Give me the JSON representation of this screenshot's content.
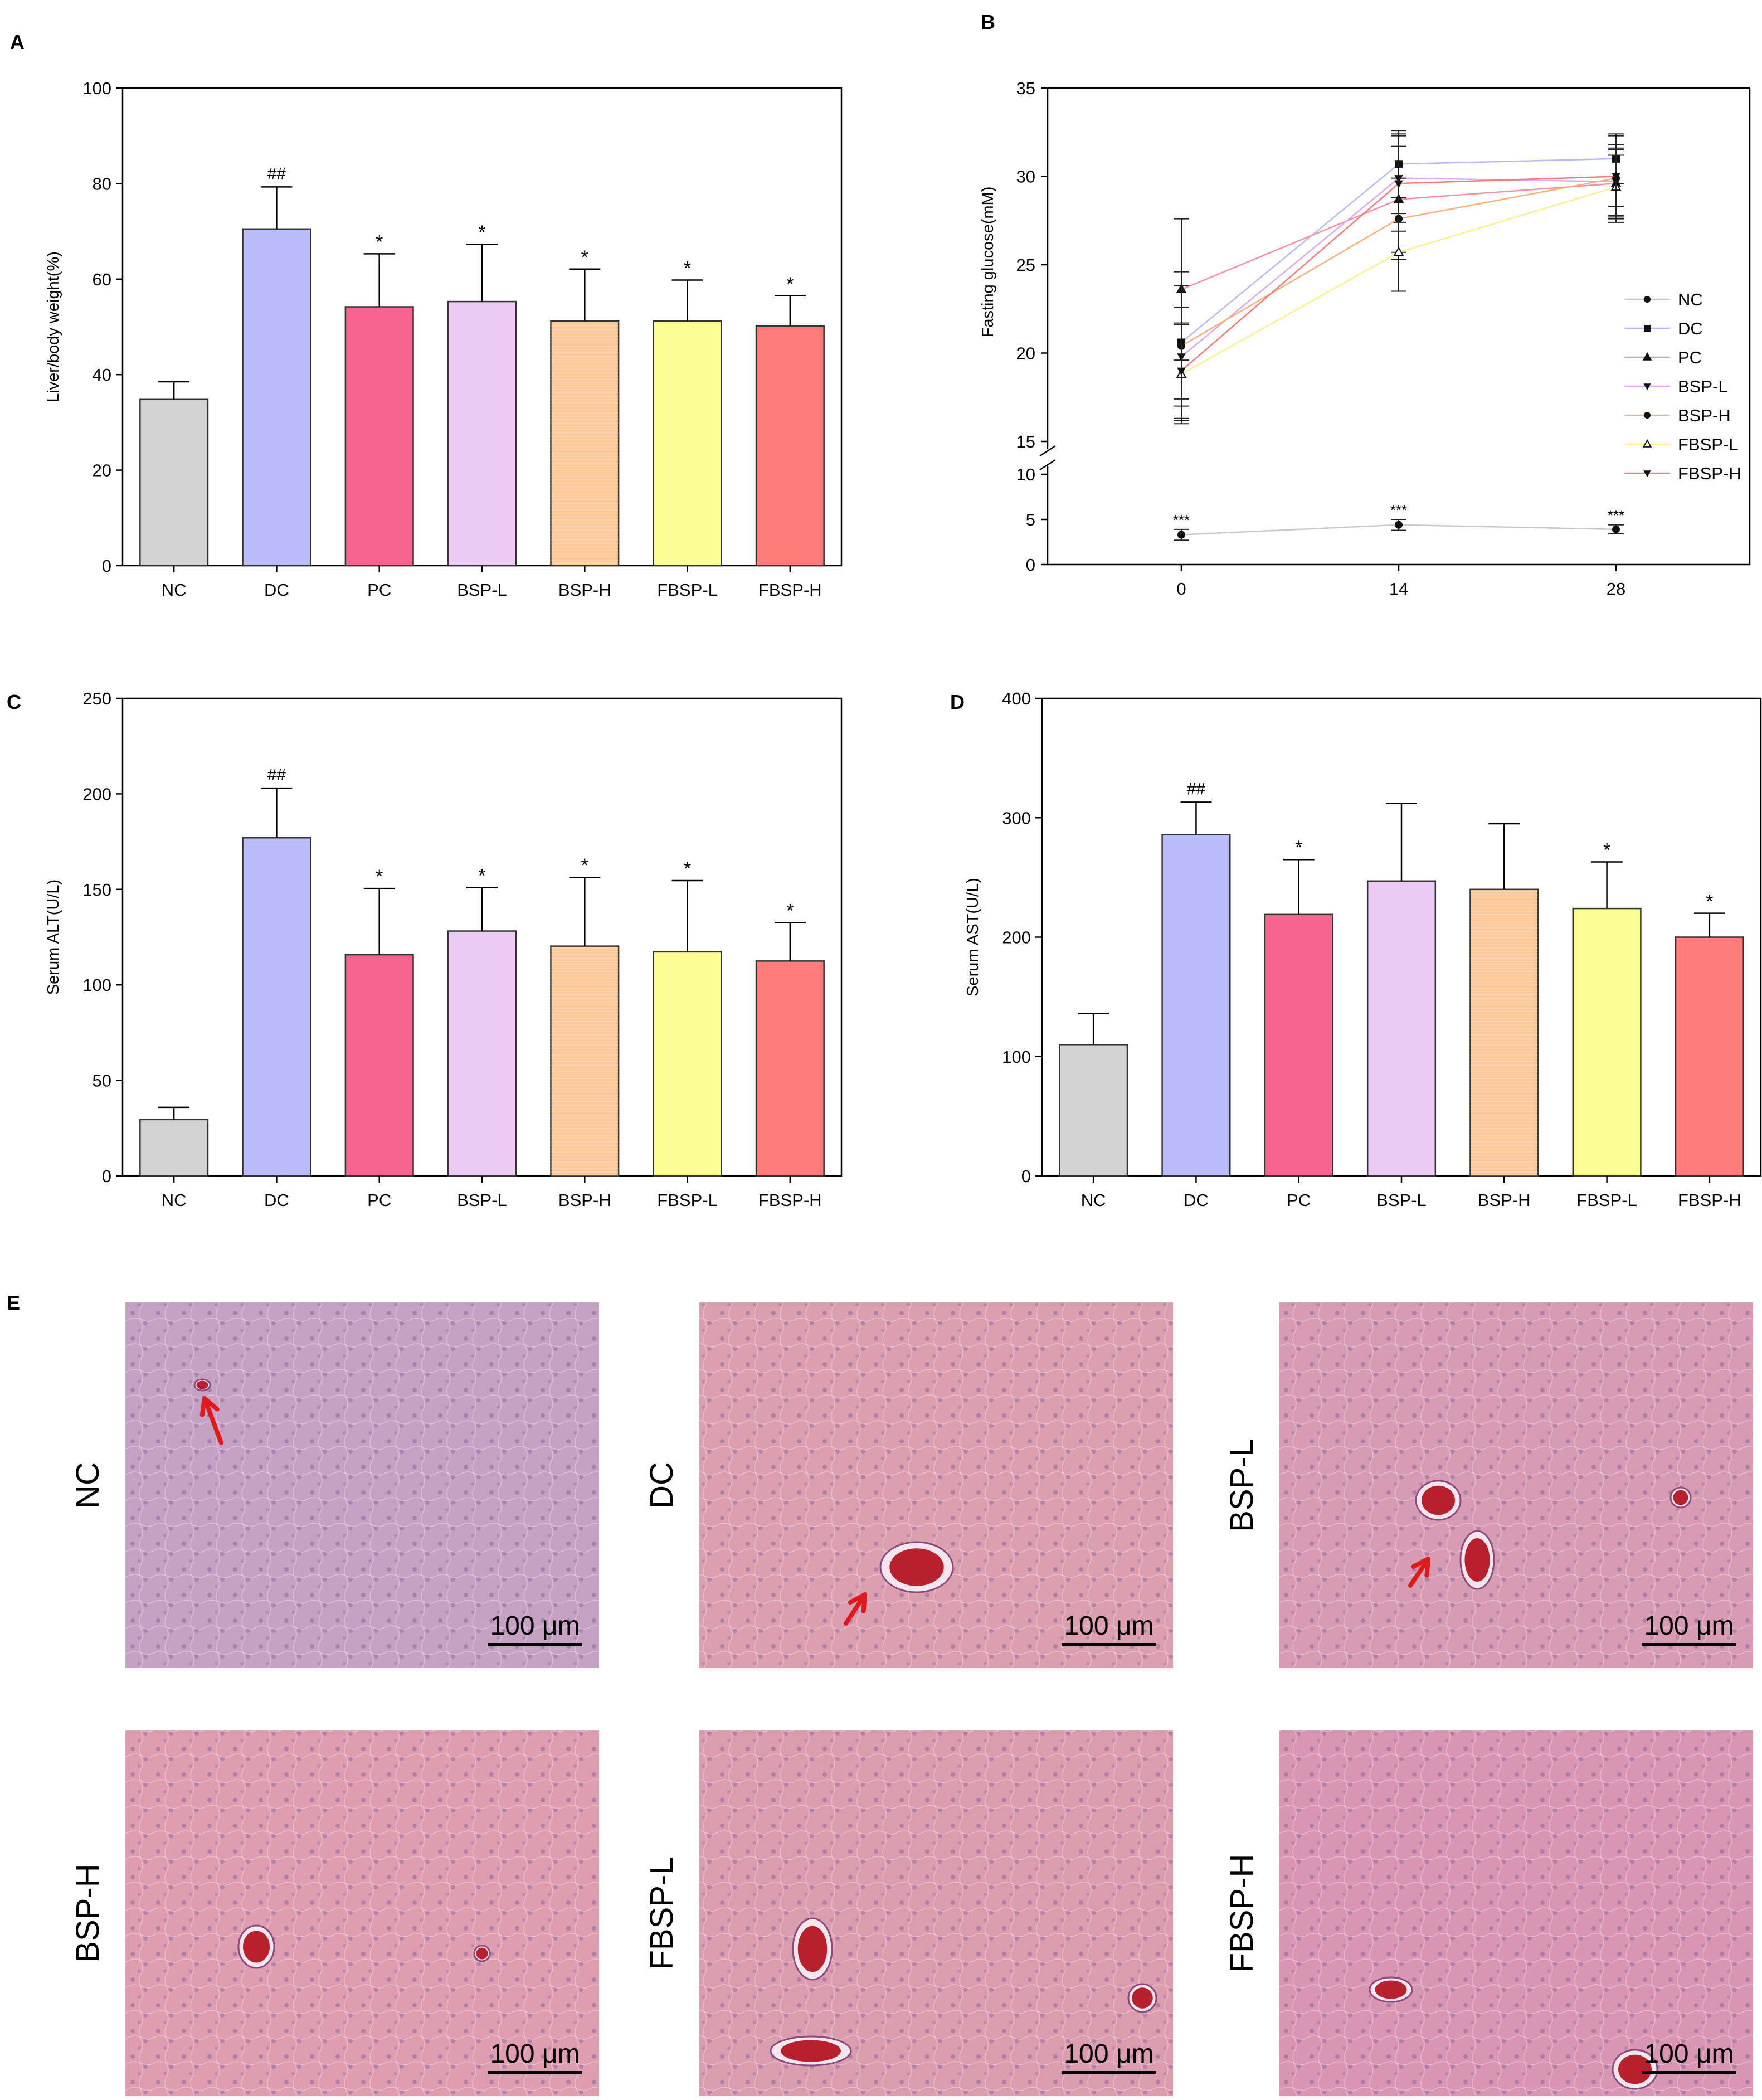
{
  "colors": {
    "NC": "#d3d3d3",
    "DC": "#babcfa",
    "PC": "#f7648e",
    "BSP-L": "#ebcaf3",
    "BSP-H": "#fdc998",
    "FBSP-L": "#fcfc94",
    "FBSP-H": "#fd7b7b",
    "arrow": "#e01a1a"
  },
  "line_colors": {
    "NC": "#c8c8c8",
    "DC": "#b8baf3",
    "PC": "#f58fa8",
    "BSP-L": "#dba9ef",
    "BSP-H": "#f7b07a",
    "FBSP-L": "#fbf08c",
    "FBSP-H": "#f27a7a"
  },
  "markers": {
    "NC": "circle",
    "DC": "square",
    "PC": "triangle-up",
    "BSP-L": "triangle-down",
    "BSP-H": "circle",
    "FBSP-L": "triangle-up-open",
    "FBSP-H": "triangle-down"
  },
  "chart_data": [
    {
      "panel": "A",
      "type": "bar",
      "categories": [
        "NC",
        "DC",
        "PC",
        "BSP-L",
        "BSP-H",
        "FBSP-L",
        "FBSP-H"
      ],
      "values": [
        34.8,
        70.5,
        54.2,
        55.3,
        51.2,
        51.2,
        50.2
      ],
      "errors": [
        3.7,
        8.8,
        11.1,
        12.0,
        10.9,
        8.6,
        6.3
      ],
      "annotations": [
        "",
        "##",
        "*",
        "*",
        "*",
        "*",
        "*"
      ],
      "ylabel": "Liver/body weight(%)",
      "ylim": [
        0,
        100
      ],
      "yticks": [
        0,
        20,
        40,
        60,
        80,
        100
      ]
    },
    {
      "panel": "B",
      "type": "line",
      "x": [
        0,
        14,
        28
      ],
      "xticks": [
        "0",
        "14",
        "28"
      ],
      "ylabel": "Fasting glucose(mM)",
      "yticks_upper": [
        "15",
        "20",
        "25",
        "30",
        "35"
      ],
      "yticks_lower": [
        "0",
        "5",
        "10"
      ],
      "broken_axis": {
        "lower": [
          0,
          10
        ],
        "upper": [
          15,
          35
        ]
      },
      "series": [
        {
          "name": "NC",
          "values": [
            3.3,
            4.4,
            3.9
          ],
          "errors": [
            0.6,
            0.6,
            0.5
          ],
          "annotations": [
            "***",
            "***",
            "***"
          ]
        },
        {
          "name": "DC",
          "values": [
            20.6,
            30.7,
            31.0
          ],
          "errors": [
            3.2,
            1.9,
            1.4
          ]
        },
        {
          "name": "PC",
          "values": [
            23.6,
            28.7,
            29.6
          ],
          "errors": [
            4.0,
            3.0,
            2.2
          ]
        },
        {
          "name": "BSP-L",
          "values": [
            19.8,
            29.9,
            29.7
          ],
          "errors": [
            2.8,
            2.5,
            1.9
          ]
        },
        {
          "name": "BSP-H",
          "values": [
            20.4,
            27.6,
            29.9
          ],
          "errors": [
            4.2,
            2.3,
            1.6
          ]
        },
        {
          "name": "FBSP-L",
          "values": [
            18.8,
            25.7,
            29.4
          ],
          "errors": [
            2.8,
            2.2,
            1.8
          ]
        },
        {
          "name": "FBSP-H",
          "values": [
            19.0,
            29.6,
            30.0
          ],
          "errors": [
            2.7,
            2.7,
            2.3
          ]
        }
      ],
      "legend": [
        "NC",
        "DC",
        "PC",
        "BSP-L",
        "BSP-H",
        "FBSP-L",
        "FBSP-H"
      ],
      "legend_position": "right"
    },
    {
      "panel": "C",
      "type": "bar",
      "categories": [
        "NC",
        "DC",
        "PC",
        "BSP-L",
        "BSP-H",
        "FBSP-L",
        "FBSP-H"
      ],
      "values": [
        29.5,
        177.0,
        115.8,
        128.2,
        120.3,
        117.3,
        112.5
      ],
      "errors": [
        6.4,
        26.0,
        34.7,
        22.8,
        36.0,
        37.3,
        20.1
      ],
      "annotations": [
        "",
        "##",
        "*",
        "*",
        "*",
        "*",
        "*"
      ],
      "ylabel": "Serum ALT(U/L)",
      "ylim": [
        0,
        250
      ],
      "yticks": [
        0,
        50,
        100,
        150,
        200,
        250
      ]
    },
    {
      "panel": "D",
      "type": "bar",
      "categories": [
        "NC",
        "DC",
        "PC",
        "BSP-L",
        "BSP-H",
        "FBSP-L",
        "FBSP-H"
      ],
      "values": [
        110,
        286,
        219,
        247,
        240,
        224,
        200
      ],
      "errors": [
        26,
        27,
        46,
        65,
        55,
        39,
        20
      ],
      "annotations": [
        "",
        "##",
        "*",
        "",
        "",
        "*",
        "*"
      ],
      "ylabel": "Serum AST(U/L)",
      "ylim": [
        0,
        400
      ],
      "yticks": [
        0,
        100,
        200,
        300,
        400
      ]
    }
  ],
  "panel_labels": {
    "A": "A",
    "B": "B",
    "C": "C",
    "D": "D",
    "E": "E"
  },
  "histology": {
    "scale_bar_text": "100 μm",
    "images": [
      {
        "label": "NC",
        "bg": "#c5a2c4"
      },
      {
        "label": "DC",
        "bg": "#dc9fb0"
      },
      {
        "label": "BSP-L",
        "bg": "#d79bb3"
      },
      {
        "label": "BSP-H",
        "bg": "#de9db0"
      },
      {
        "label": "FBSP-L",
        "bg": "#dc9caf"
      },
      {
        "label": "FBSP-H",
        "bg": "#d996b2"
      }
    ]
  }
}
